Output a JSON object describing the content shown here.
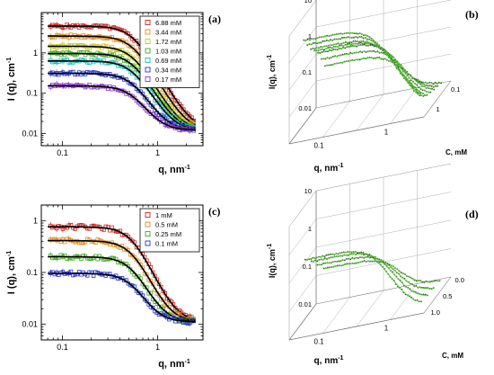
{
  "chart_data": [
    {
      "panel": "a",
      "type": "scatter",
      "panel_label": "(a)",
      "xlabel": "q, nm",
      "xlabel_exp": "-1",
      "ylabel": "I (q), cm",
      "ylabel_exp": "-1",
      "xscale": "log",
      "yscale": "log",
      "xlim": [
        0.06,
        3.0
      ],
      "ylim": [
        0.005,
        10
      ],
      "xticks": [
        {
          "v": 0.1,
          "label": "0.1"
        },
        {
          "v": 1,
          "label": "1"
        }
      ],
      "yticks": [
        {
          "v": 0.01,
          "label": "0.01"
        },
        {
          "v": 0.1,
          "label": "0.1"
        },
        {
          "v": 1,
          "label": "1"
        }
      ],
      "legend_position": "top-right",
      "series": [
        {
          "name": "6.88 mM",
          "color": "#cc2222",
          "I0": 4.6,
          "bg": 0.012
        },
        {
          "name": "3.44 mM",
          "color": "#e08a1a",
          "I0": 2.6,
          "bg": 0.012
        },
        {
          "name": "1.72 mM",
          "color": "#c8c81a",
          "I0": 1.45,
          "bg": 0.012
        },
        {
          "name": "1.03 mM",
          "color": "#44aa22",
          "I0": 0.95,
          "bg": 0.012
        },
        {
          "name": "0.69 mM",
          "color": "#22bbbb",
          "I0": 0.62,
          "bg": 0.012
        },
        {
          "name": "0.34 mM",
          "color": "#2233cc",
          "I0": 0.3,
          "bg": 0.012
        },
        {
          "name": "0.17 mM",
          "color": "#8833cc",
          "I0": 0.14,
          "bg": 0.012
        }
      ]
    },
    {
      "panel": "b",
      "type": "line-3d",
      "panel_label": "(b)",
      "xlabel": "q, nm",
      "xlabel_exp": "-1",
      "ylabel": "I(q), cm",
      "ylabel_exp": "-1",
      "zlabel": "C, mM",
      "xticks": [
        "0.1",
        "1"
      ],
      "yticks": [
        "0.01",
        "0.1",
        "1",
        "10"
      ],
      "zticks": [
        "0.1",
        "1"
      ],
      "series_I0": [
        0.14,
        0.3,
        0.62,
        0.95,
        1.45,
        2.6,
        4.6
      ]
    },
    {
      "panel": "c",
      "type": "scatter",
      "panel_label": "(c)",
      "xlabel": "q, nm",
      "xlabel_exp": "-1",
      "ylabel": "I (q), cm",
      "ylabel_exp": "-1",
      "xscale": "log",
      "yscale": "log",
      "xlim": [
        0.06,
        3.0
      ],
      "ylim": [
        0.005,
        2
      ],
      "xticks": [
        {
          "v": 0.1,
          "label": "0.1"
        },
        {
          "v": 1,
          "label": "1"
        }
      ],
      "yticks": [
        {
          "v": 0.01,
          "label": "0.01"
        },
        {
          "v": 0.1,
          "label": "0.1"
        },
        {
          "v": 1,
          "label": "1"
        }
      ],
      "legend_position": "top-right",
      "series": [
        {
          "name": "1    mM",
          "color": "#cc2222",
          "I0": 0.75,
          "bg": 0.011
        },
        {
          "name": "0.5  mM",
          "color": "#e08a1a",
          "I0": 0.4,
          "bg": 0.011
        },
        {
          "name": "0.25 mM",
          "color": "#44aa22",
          "I0": 0.19,
          "bg": 0.011
        },
        {
          "name": "0.1  mM",
          "color": "#2233cc",
          "I0": 0.085,
          "bg": 0.011
        }
      ]
    },
    {
      "panel": "d",
      "type": "line-3d",
      "panel_label": "(d)",
      "xlabel": "q, nm",
      "xlabel_exp": "-1",
      "ylabel": "I(q), cm",
      "ylabel_exp": "-1",
      "zlabel": "C, mM",
      "xticks": [
        "0.1",
        "1"
      ],
      "yticks": [
        "0.01",
        "0.1",
        "1",
        "10"
      ],
      "zticks": [
        "0.0",
        "0.5",
        "1.0"
      ],
      "series_I0": [
        0.085,
        0.19,
        0.4,
        0.75
      ]
    }
  ]
}
